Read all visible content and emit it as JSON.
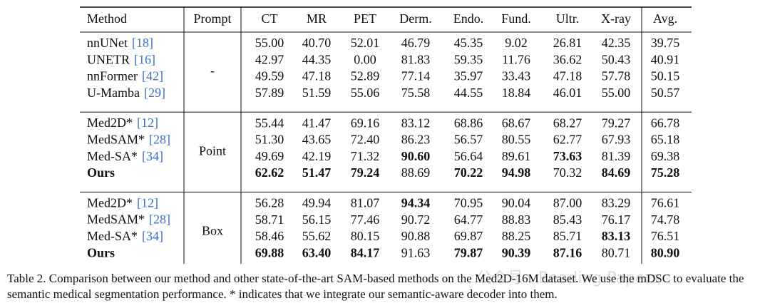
{
  "table": {
    "header": [
      "Method",
      "Prompt",
      "CT",
      "MR",
      "PET",
      "Derm.",
      "Endo.",
      "Fund.",
      "Ultr.",
      "X-ray",
      "Avg."
    ],
    "groups": [
      {
        "prompt": "-",
        "rows": [
          {
            "method": "nnUNet",
            "ref": "[18]",
            "values": [
              "55.00",
              "40.70",
              "52.01",
              "46.79",
              "45.35",
              "9.02",
              "26.81",
              "42.35",
              "39.75"
            ],
            "bold": [
              false,
              false,
              false,
              false,
              false,
              false,
              false,
              false,
              false
            ]
          },
          {
            "method": "UNETR",
            "ref": "[16]",
            "values": [
              "42.97",
              "44.35",
              "0.00",
              "81.83",
              "59.35",
              "11.76",
              "36.62",
              "50.43",
              "40.91"
            ],
            "bold": [
              false,
              false,
              false,
              false,
              false,
              false,
              false,
              false,
              false
            ]
          },
          {
            "method": "nnFormer",
            "ref": "[42]",
            "values": [
              "49.59",
              "47.18",
              "52.89",
              "77.14",
              "35.97",
              "33.43",
              "47.18",
              "57.78",
              "50.15"
            ],
            "bold": [
              false,
              false,
              false,
              false,
              false,
              false,
              false,
              false,
              false
            ]
          },
          {
            "method": "U-Mamba",
            "ref": "[29]",
            "values": [
              "57.89",
              "51.59",
              "55.06",
              "75.58",
              "44.55",
              "18.84",
              "46.01",
              "55.00",
              "50.57"
            ],
            "bold": [
              false,
              false,
              false,
              false,
              false,
              false,
              false,
              false,
              false
            ]
          }
        ]
      },
      {
        "prompt": "Point",
        "rows": [
          {
            "method": "Med2D*",
            "ref": "[12]",
            "values": [
              "55.44",
              "41.47",
              "69.16",
              "83.12",
              "68.86",
              "68.67",
              "68.27",
              "79.27",
              "66.78"
            ],
            "bold": [
              false,
              false,
              false,
              false,
              false,
              false,
              false,
              false,
              false
            ]
          },
          {
            "method": "MedSAM*",
            "ref": "[28]",
            "values": [
              "51.30",
              "43.65",
              "72.40",
              "86.23",
              "56.57",
              "80.55",
              "62.77",
              "67.93",
              "65.18"
            ],
            "bold": [
              false,
              false,
              false,
              false,
              false,
              false,
              false,
              false,
              false
            ]
          },
          {
            "method": "Med-SA*",
            "ref": "[34]",
            "values": [
              "49.69",
              "42.19",
              "71.32",
              "90.60",
              "56.64",
              "89.61",
              "73.63",
              "81.39",
              "69.38"
            ],
            "bold": [
              false,
              false,
              false,
              true,
              false,
              false,
              true,
              false,
              false
            ]
          },
          {
            "method": "Ours",
            "method_bold": true,
            "values": [
              "62.62",
              "51.47",
              "79.24",
              "88.69",
              "70.22",
              "94.98",
              "70.32",
              "84.69",
              "75.28"
            ],
            "bold": [
              true,
              true,
              true,
              false,
              true,
              true,
              false,
              true,
              true
            ]
          }
        ]
      },
      {
        "prompt": "Box",
        "rows": [
          {
            "method": "Med2D*",
            "ref": "[12]",
            "values": [
              "56.28",
              "49.94",
              "81.07",
              "94.34",
              "70.95",
              "90.04",
              "87.00",
              "83.29",
              "76.61"
            ],
            "bold": [
              false,
              false,
              false,
              true,
              false,
              false,
              false,
              false,
              false
            ]
          },
          {
            "method": "MedSAM*",
            "ref": "[28]",
            "values": [
              "58.71",
              "56.15",
              "77.46",
              "90.72",
              "64.77",
              "88.83",
              "85.43",
              "76.17",
              "74.78"
            ],
            "bold": [
              false,
              false,
              false,
              false,
              false,
              false,
              false,
              false,
              false
            ]
          },
          {
            "method": "Med-SA*",
            "ref": "[34]",
            "values": [
              "58.46",
              "55.62",
              "80.15",
              "90.88",
              "69.87",
              "88.25",
              "85.71",
              "83.13",
              "76.51"
            ],
            "bold": [
              false,
              false,
              false,
              false,
              false,
              false,
              false,
              true,
              false
            ]
          },
          {
            "method": "Ours",
            "method_bold": true,
            "values": [
              "69.88",
              "63.40",
              "84.17",
              "91.63",
              "79.87",
              "90.39",
              "87.16",
              "80.71",
              "80.90"
            ],
            "bold": [
              true,
              true,
              true,
              false,
              true,
              true,
              true,
              false,
              true
            ]
          }
        ]
      }
    ]
  },
  "caption": {
    "label": "Table 2.",
    "text": "Comparison between our method and other state-of-the-art SAM-based methods on the Med2D-16M dataset. We use the mDSC to evaluate the semantic medical segmentation performance. * indicates that we integrate our semantic-aware decoder into them."
  },
  "watermark": "公众号 · Reading Papers"
}
